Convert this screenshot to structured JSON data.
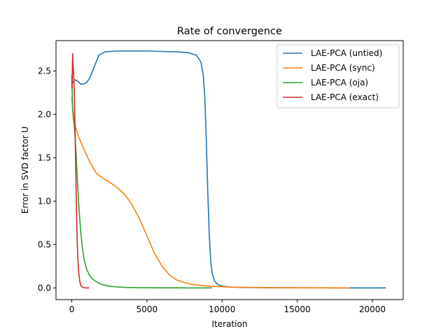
{
  "chart_data": {
    "type": "line",
    "title": "Rate of convergence",
    "xlabel": "Iteration",
    "ylabel": "Error in SVD factor U",
    "xlim": [
      -1050,
      22050
    ],
    "ylim": [
      -0.135,
      2.85
    ],
    "xticks": [
      0,
      5000,
      10000,
      15000,
      20000
    ],
    "xtick_labels": [
      "0",
      "5000",
      "10000",
      "15000",
      "20000"
    ],
    "yticks": [
      0.0,
      0.5,
      1.0,
      1.5,
      2.0,
      2.5
    ],
    "ytick_labels": [
      "0.0",
      "0.5",
      "1.0",
      "1.5",
      "2.0",
      "2.5"
    ],
    "grid": false,
    "legend_position": "top-right",
    "series": [
      {
        "name": "LAE-PCA (untied)",
        "color": "#1f77b4",
        "x": [
          0,
          200,
          400,
          600,
          800,
          1000,
          1200,
          1500,
          1800,
          2200,
          3000,
          4000,
          5000,
          6000,
          7000,
          7800,
          8300,
          8600,
          8750,
          8850,
          8950,
          9050,
          9150,
          9250,
          9350,
          9500,
          9700,
          10000,
          10500,
          11500,
          13000,
          15000,
          18000,
          20900
        ],
        "y": [
          2.35,
          2.4,
          2.38,
          2.35,
          2.35,
          2.37,
          2.42,
          2.55,
          2.68,
          2.72,
          2.73,
          2.73,
          2.73,
          2.725,
          2.72,
          2.71,
          2.68,
          2.6,
          2.45,
          2.2,
          1.7,
          1.1,
          0.6,
          0.3,
          0.16,
          0.08,
          0.04,
          0.02,
          0.01,
          0.005,
          0.002,
          0.001,
          0.0,
          0.0
        ]
      },
      {
        "name": "LAE-PCA (sync)",
        "color": "#ff7f0e",
        "x": [
          0,
          100,
          250,
          500,
          800,
          1200,
          1600,
          2000,
          2500,
          3000,
          3500,
          4000,
          4500,
          5000,
          5500,
          6000,
          6500,
          7000,
          7500,
          8000,
          8500,
          9000,
          9500,
          10000,
          11000,
          12000,
          14000,
          16000,
          18500
        ],
        "y": [
          2.2,
          1.95,
          1.85,
          1.72,
          1.6,
          1.45,
          1.33,
          1.27,
          1.22,
          1.16,
          1.08,
          0.96,
          0.8,
          0.6,
          0.4,
          0.25,
          0.15,
          0.09,
          0.06,
          0.04,
          0.03,
          0.022,
          0.017,
          0.013,
          0.008,
          0.005,
          0.002,
          0.001,
          0.0
        ]
      },
      {
        "name": "LAE-PCA (oja)",
        "color": "#2ca02c",
        "x": [
          0,
          50,
          100,
          150,
          200,
          250,
          300,
          350,
          400,
          500,
          600,
          700,
          800,
          900,
          1000,
          1200,
          1400,
          1600,
          1800,
          2000,
          2300,
          2600,
          3000,
          3500,
          4000,
          5000,
          6000,
          7500,
          9300
        ],
        "y": [
          2.45,
          2.1,
          2.0,
          1.9,
          1.8,
          1.65,
          1.5,
          1.32,
          1.15,
          0.87,
          0.64,
          0.47,
          0.35,
          0.27,
          0.21,
          0.14,
          0.1,
          0.075,
          0.055,
          0.04,
          0.027,
          0.018,
          0.011,
          0.006,
          0.004,
          0.002,
          0.001,
          0.0,
          0.0
        ]
      },
      {
        "name": "LAE-PCA (exact)",
        "color": "#d62728",
        "x": [
          0,
          20,
          40,
          60,
          80,
          110,
          140,
          170,
          200,
          230,
          260,
          290,
          320,
          350,
          380,
          410,
          450,
          500,
          550,
          600,
          700,
          800,
          1000,
          1150
        ],
        "y": [
          2.38,
          2.3,
          2.55,
          2.7,
          2.58,
          2.5,
          2.4,
          2.25,
          2.0,
          1.7,
          1.4,
          1.1,
          0.85,
          0.62,
          0.45,
          0.32,
          0.2,
          0.12,
          0.06,
          0.03,
          0.01,
          0.002,
          0.0,
          0.0
        ]
      }
    ]
  }
}
